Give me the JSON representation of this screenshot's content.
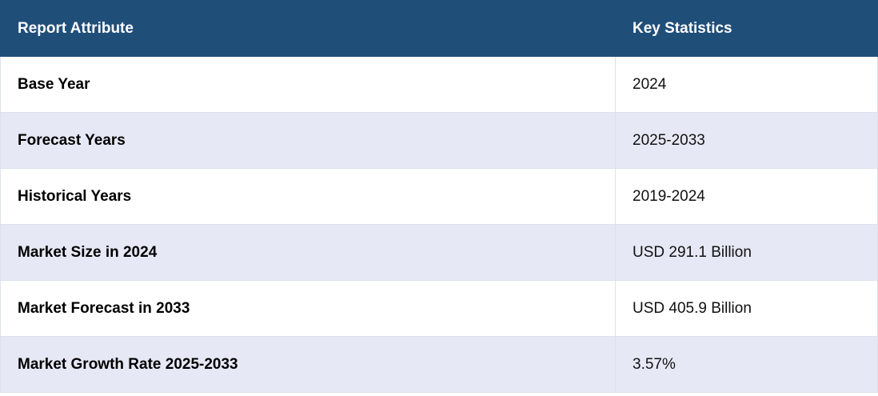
{
  "table": {
    "header": [
      "Report Attribute",
      "Key Statistics"
    ],
    "rows": [
      [
        "Base Year",
        "2024"
      ],
      [
        "Forecast Years",
        "2025-2033"
      ],
      [
        "Historical Years",
        "2019-2024"
      ],
      [
        "Market Size in 2024",
        "USD 291.1 Billion"
      ],
      [
        "Market Forecast in 2033",
        "USD 405.9 Billion"
      ],
      [
        "Market Growth Rate 2025-2033",
        "3.57%"
      ]
    ]
  }
}
